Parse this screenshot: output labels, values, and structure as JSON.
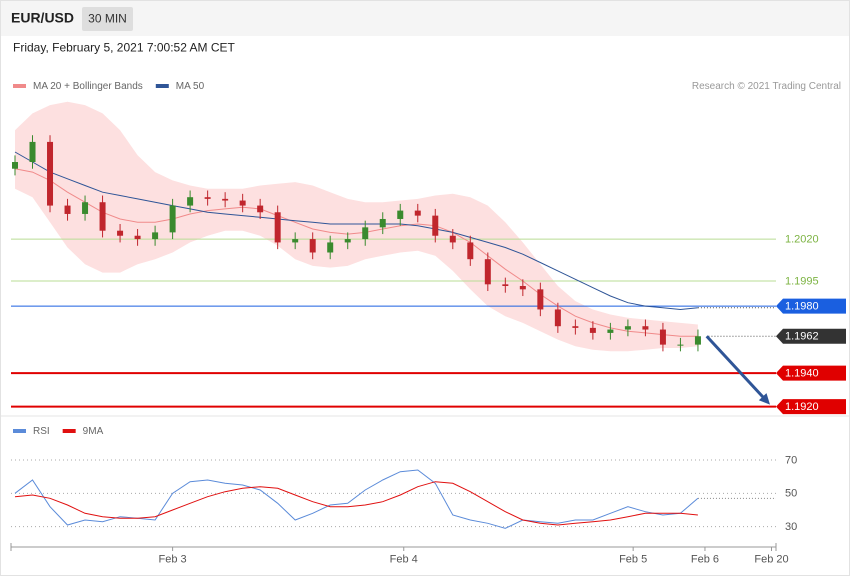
{
  "header": {
    "symbol": "EUR/USD",
    "interval": "30 MIN",
    "timestamp": "Friday, February 5, 2021 7:00:52 AM CET"
  },
  "chart_data": [
    {
      "type": "candlestick",
      "source": "Research © 2021 Trading Central",
      "up_color": "#3a8a2e",
      "down_color": "#c0262d",
      "ylim": [
        1.1915,
        1.2106
      ],
      "xlim": [
        0,
        43.4
      ],
      "open": [
        1.2062,
        1.2066,
        1.2078,
        1.204,
        1.2035,
        1.2042,
        1.2025,
        1.2022,
        1.202,
        1.2024,
        1.204,
        1.2045,
        1.2044,
        1.2043,
        1.204,
        1.2036,
        1.2018,
        1.202,
        1.2012,
        1.2018,
        1.202,
        1.2027,
        1.2032,
        1.2037,
        1.2034,
        1.2022,
        1.2018,
        1.2008,
        1.1993,
        1.1992,
        1.199,
        1.1978,
        1.1968,
        1.1967,
        1.1964,
        1.1966,
        1.1968,
        1.1966,
        1.1957,
        1.1957
      ],
      "high": [
        1.207,
        1.2082,
        1.2082,
        1.2044,
        1.2046,
        1.2046,
        1.2029,
        1.2026,
        1.2028,
        1.2044,
        1.2049,
        1.2049,
        1.2048,
        1.2047,
        1.2044,
        1.204,
        1.2024,
        1.2024,
        1.2022,
        1.2024,
        1.2031,
        1.2036,
        1.2041,
        1.2041,
        1.2038,
        1.2026,
        1.2022,
        1.2012,
        1.1997,
        1.1996,
        1.1994,
        1.1982,
        1.1972,
        1.1971,
        1.197,
        1.1972,
        1.1972,
        1.197,
        1.1961,
        1.1966
      ],
      "low": [
        1.2058,
        1.2062,
        1.2036,
        1.2031,
        1.2031,
        1.2021,
        1.2018,
        1.2016,
        1.2016,
        1.202,
        1.2036,
        1.204,
        1.2039,
        1.2036,
        1.2032,
        1.2014,
        1.2014,
        1.2008,
        1.2008,
        1.2014,
        1.2016,
        1.2023,
        1.2028,
        1.203,
        1.2018,
        1.2014,
        1.2004,
        1.1989,
        1.1988,
        1.1986,
        1.1974,
        1.1964,
        1.1963,
        1.196,
        1.196,
        1.1962,
        1.1962,
        1.1953,
        1.1953,
        1.1953
      ],
      "close": [
        1.2066,
        1.2078,
        1.204,
        1.2035,
        1.2042,
        1.2025,
        1.2022,
        1.202,
        1.2024,
        1.204,
        1.2045,
        1.2044,
        1.2043,
        1.204,
        1.2036,
        1.2018,
        1.202,
        1.2012,
        1.2018,
        1.202,
        1.2027,
        1.2032,
        1.2037,
        1.2034,
        1.2022,
        1.2018,
        1.2008,
        1.1993,
        1.1992,
        1.199,
        1.1978,
        1.1968,
        1.1967,
        1.1964,
        1.1966,
        1.1968,
        1.1966,
        1.1957,
        1.1957,
        1.1962
      ],
      "series": [
        {
          "name": "MA 20 + Bollinger Bands",
          "color": "#f08a8a",
          "band_color": "#fde0e0",
          "values": [
            1.2062,
            1.206,
            1.2055,
            1.2048,
            1.2042,
            1.2036,
            1.2032,
            1.203,
            1.203,
            1.2032,
            1.2035,
            1.2037,
            1.2038,
            1.2039,
            1.2038,
            1.2034,
            1.203,
            1.2026,
            1.2024,
            1.2023,
            1.2024,
            1.2026,
            1.2028,
            1.2029,
            1.2028,
            1.2024,
            1.2018,
            1.201,
            1.2002,
            1.1995,
            1.1987,
            1.198,
            1.1974,
            1.197,
            1.1967,
            1.1965,
            1.1964,
            1.1963,
            1.1962,
            1.1962
          ],
          "upper": [
            1.2085,
            1.2095,
            1.21,
            1.2102,
            1.21,
            1.2095,
            1.2085,
            1.207,
            1.206,
            1.2055,
            1.2052,
            1.205,
            1.205,
            1.205,
            1.2052,
            1.2053,
            1.2054,
            1.2052,
            1.2048,
            1.2044,
            1.2042,
            1.2042,
            1.2043,
            1.2044,
            1.2046,
            1.2047,
            1.2045,
            1.204,
            1.203,
            1.2018,
            1.2005,
            1.1992,
            1.1983,
            1.1978,
            1.1975,
            1.1973,
            1.1972,
            1.1971,
            1.197,
            1.1969
          ],
          "lower": [
            1.205,
            1.2045,
            1.203,
            1.2015,
            1.2005,
            1.2,
            1.2,
            1.2005,
            1.2008,
            1.2012,
            1.2018,
            1.2022,
            1.2025,
            1.2025,
            1.2022,
            1.2016,
            1.2008,
            1.2004,
            1.2003,
            1.2004,
            1.2008,
            1.201,
            1.2012,
            1.2013,
            1.201,
            1.2001,
            1.199,
            1.198,
            1.1974,
            1.197,
            1.1965,
            1.196,
            1.1956,
            1.1954,
            1.1953,
            1.1953,
            1.1954,
            1.1955,
            1.1955,
            1.1956
          ]
        },
        {
          "name": "MA 50",
          "color": "#2f5597",
          "values": [
            1.2072,
            1.2066,
            1.206,
            1.2056,
            1.2052,
            1.2048,
            1.2046,
            1.2044,
            1.2042,
            1.204,
            1.2038,
            1.2036,
            1.2035,
            1.2034,
            1.2033,
            1.2032,
            1.2031,
            1.203,
            1.2029,
            1.2029,
            1.2029,
            1.2029,
            1.2029,
            1.2028,
            1.2026,
            1.2024,
            1.2021,
            1.2018,
            1.2015,
            1.2011,
            1.2006,
            1.2001,
            1.1996,
            1.1991,
            1.1986,
            1.1982,
            1.198,
            1.1979,
            1.1978,
            1.1979
          ]
        }
      ],
      "levels": [
        {
          "value": 1.202,
          "label": "1.2020",
          "color": "#b9dc95",
          "text_color": "#7cb342",
          "tag": false,
          "style": "solid",
          "width": 1
        },
        {
          "value": 1.1995,
          "label": "1.1995",
          "color": "#b9dc95",
          "text_color": "#7cb342",
          "tag": false,
          "style": "solid",
          "width": 1
        },
        {
          "value": 1.198,
          "label": "1.1980",
          "color": "#1a5fe0",
          "text_color": "#ffffff",
          "tag": true,
          "style": "solid",
          "width": 1
        },
        {
          "value": 1.1962,
          "label": "1.1962",
          "color": "#333333",
          "text_color": "#ffffff",
          "tag": true,
          "style": "dotted",
          "width": 1
        },
        {
          "value": 1.194,
          "label": "1.1940",
          "color": "#e00000",
          "text_color": "#ffffff",
          "tag": true,
          "style": "solid",
          "width": 2
        },
        {
          "value": 1.192,
          "label": "1.1920",
          "color": "#e00000",
          "text_color": "#ffffff",
          "tag": true,
          "style": "solid",
          "width": 2
        }
      ]
    },
    {
      "type": "line",
      "ylim": [
        22,
        88
      ],
      "yticks": [
        30,
        50,
        70
      ],
      "xlim": [
        0,
        43.4
      ],
      "xticks": [
        {
          "value": 9,
          "label": "Feb 3"
        },
        {
          "value": 22.2,
          "label": "Feb 4"
        },
        {
          "value": 35.3,
          "label": "Feb 5"
        },
        {
          "value": 39.4,
          "label": "Feb 6"
        },
        {
          "value": 43.2,
          "label": "Feb 20"
        }
      ],
      "series": [
        {
          "name": "RSI",
          "color": "#5b8bd9",
          "values": [
            50,
            58,
            42,
            31,
            34,
            33,
            36,
            35,
            34,
            50,
            57,
            58,
            56,
            55,
            52,
            44,
            34,
            38,
            43,
            44,
            52,
            58,
            63,
            64,
            56,
            37,
            34,
            32,
            29,
            34,
            33,
            32,
            34,
            34,
            38,
            42,
            39,
            37,
            38,
            47
          ]
        },
        {
          "name": "9MA",
          "color": "#e01010",
          "values": [
            48,
            49,
            47,
            43,
            38,
            36,
            35,
            35,
            36,
            40,
            44,
            48,
            51,
            53,
            54,
            53,
            49,
            45,
            42,
            42,
            43,
            45,
            49,
            54,
            57,
            56,
            51,
            45,
            39,
            34,
            32,
            31,
            32,
            33,
            34,
            36,
            38,
            38,
            38,
            37
          ]
        }
      ]
    }
  ]
}
